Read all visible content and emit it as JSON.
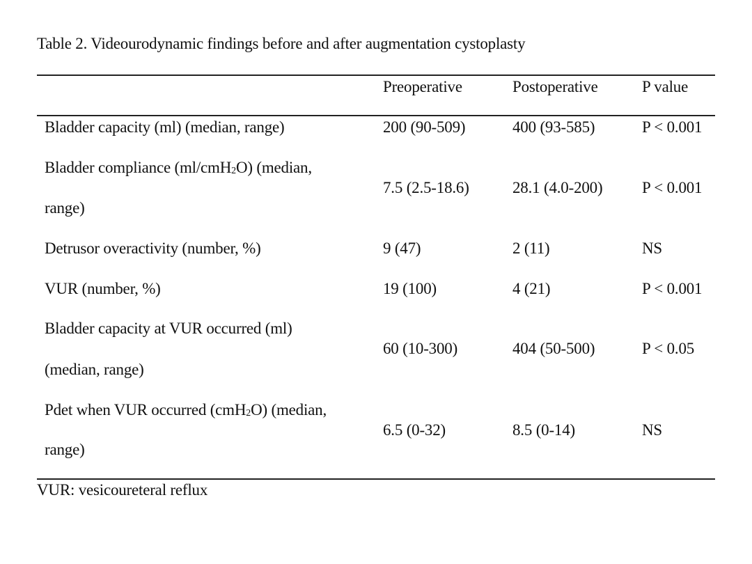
{
  "caption": "Table 2. Videourodynamic findings before and after augmentation cystoplasty",
  "header": {
    "col0": "",
    "col1": "Preoperative",
    "col2": "Postoperative",
    "col3": "P value"
  },
  "rows": [
    {
      "label_line1": "Bladder capacity (ml) (median, range)",
      "label_line2": "",
      "pre": "200 (90-509)",
      "post": "400 (93-585)",
      "p": "P < 0.001"
    },
    {
      "label_line1_a": "Bladder compliance (ml/cmH",
      "label_line1_sub": "2",
      "label_line1_b": "O) (median,",
      "label_line2": "range)",
      "pre": "7.5 (2.5-18.6)",
      "post": "28.1 (4.0-200)",
      "p": "P < 0.001"
    },
    {
      "label_line1": "Detrusor overactivity (number, %)",
      "label_line2": "",
      "pre": "9 (47)",
      "post": "2 (11)",
      "p": "NS"
    },
    {
      "label_line1": "VUR (number, %)",
      "label_line2": "",
      "pre": "19 (100)",
      "post": "4 (21)",
      "p": "P < 0.001"
    },
    {
      "label_line1": "Bladder capacity at VUR occurred (ml)",
      "label_line2": "(median, range)",
      "pre": "60 (10-300)",
      "post": "404 (50-500)",
      "p": "P < 0.05"
    },
    {
      "label_line1_a": "Pdet when VUR occurred (cmH",
      "label_line1_sub": "2",
      "label_line1_b": "O) (median,",
      "label_line2": "range)",
      "pre": "6.5 (0-32)",
      "post": "8.5 (0-14)",
      "p": "NS"
    }
  ],
  "footnote": "VUR: vesicoureteral reflux"
}
